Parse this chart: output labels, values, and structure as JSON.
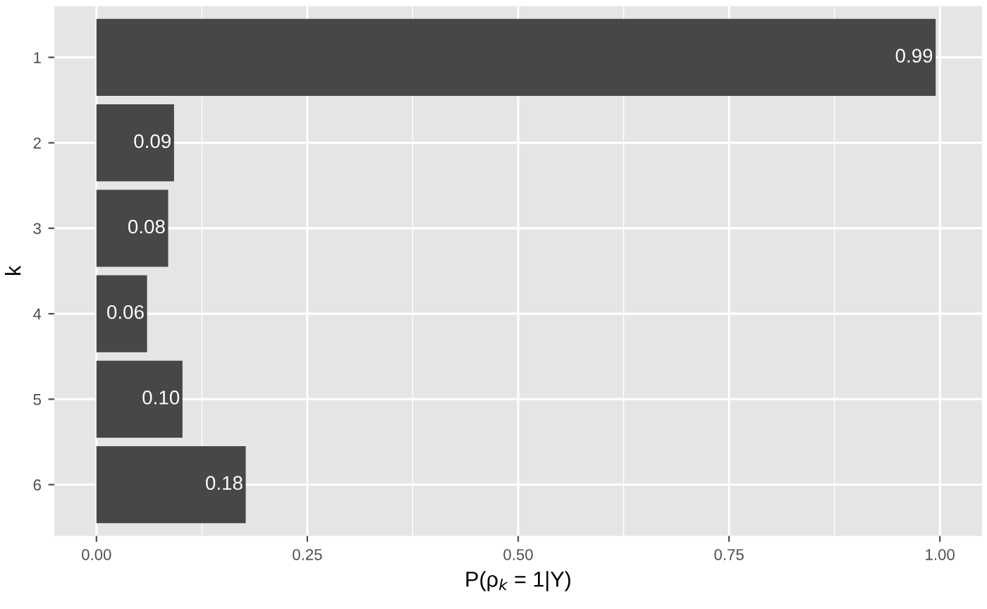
{
  "chart_data": {
    "type": "bar",
    "orientation": "horizontal",
    "categories": [
      "1",
      "2",
      "3",
      "4",
      "5",
      "6"
    ],
    "values": [
      0.995,
      0.092,
      0.085,
      0.06,
      0.102,
      0.177
    ],
    "value_labels": [
      "0.99",
      "0.09",
      "0.08",
      "0.06",
      "0.10",
      "0.18"
    ],
    "color": "#474747",
    "xlabel": "P(ρ$_{k}$ = 1|Y)",
    "ylabel": "k",
    "xlim": [
      -0.05,
      1.05
    ],
    "xticks": [
      {
        "value": 0,
        "label": "0.00"
      },
      {
        "value": 0.25,
        "label": "0.25"
      },
      {
        "value": 0.5,
        "label": "0.50"
      },
      {
        "value": 0.75,
        "label": "0.75"
      },
      {
        "value": 1,
        "label": "1.00"
      }
    ],
    "grid": true
  }
}
